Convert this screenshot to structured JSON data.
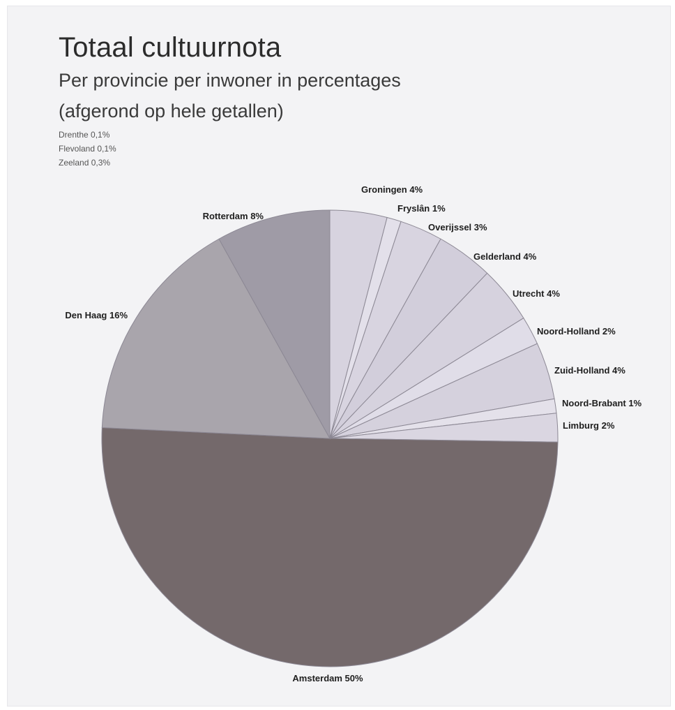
{
  "header": {
    "title": "Totaal cultuurnota",
    "subtitle_line1": "Per provincie per inwoner in percentages",
    "subtitle_line2": "(afgerond op hele getallen)"
  },
  "small_provinces": [
    "Drenthe 0,1%",
    "Flevoland 0,1%",
    "Zeeland 0,3%"
  ],
  "chart_data": {
    "type": "pie",
    "title": "Totaal cultuurnota",
    "subtitle": "Per provincie per inwoner in percentages (afgerond op hele getallen)",
    "start": "12 o'clock",
    "direction": "clockwise",
    "slices": [
      {
        "name": "Groningen",
        "value": 4,
        "label": "Groningen 4%",
        "color": "#d7d3df"
      },
      {
        "name": "Fryslân",
        "value": 1,
        "label": "Fryslân 1%",
        "color": "#e3e0ea"
      },
      {
        "name": "Overijssel",
        "value": 3,
        "label": "Overijssel 3%",
        "color": "#d8d4e0"
      },
      {
        "name": "Gelderland",
        "value": 4,
        "label": "Gelderland 4%",
        "color": "#d2cedb"
      },
      {
        "name": "Utrecht",
        "value": 4,
        "label": "Utrecht 4%",
        "color": "#d6d2de"
      },
      {
        "name": "Noord-Holland",
        "value": 2,
        "label": "Noord-Holland 2%",
        "color": "#e0dde8"
      },
      {
        "name": "Zuid-Holland",
        "value": 4,
        "label": "Zuid-Holland 4%",
        "color": "#d5d1dd"
      },
      {
        "name": "Noord-Brabant",
        "value": 1,
        "label": "Noord-Brabant 1%",
        "color": "#e4e1ea"
      },
      {
        "name": "Limburg",
        "value": 2,
        "label": "Limburg 2%",
        "color": "#dad6e1"
      },
      {
        "name": "Amsterdam",
        "value": 50,
        "label": "Amsterdam 50%",
        "color": "#74696b"
      },
      {
        "name": "Den Haag",
        "value": 16,
        "label": "Den Haag 16%",
        "color": "#a9a5ac"
      },
      {
        "name": "Rotterdam",
        "value": 8,
        "label": "Rotterdam 8%",
        "color": "#9f9ba6"
      }
    ]
  }
}
